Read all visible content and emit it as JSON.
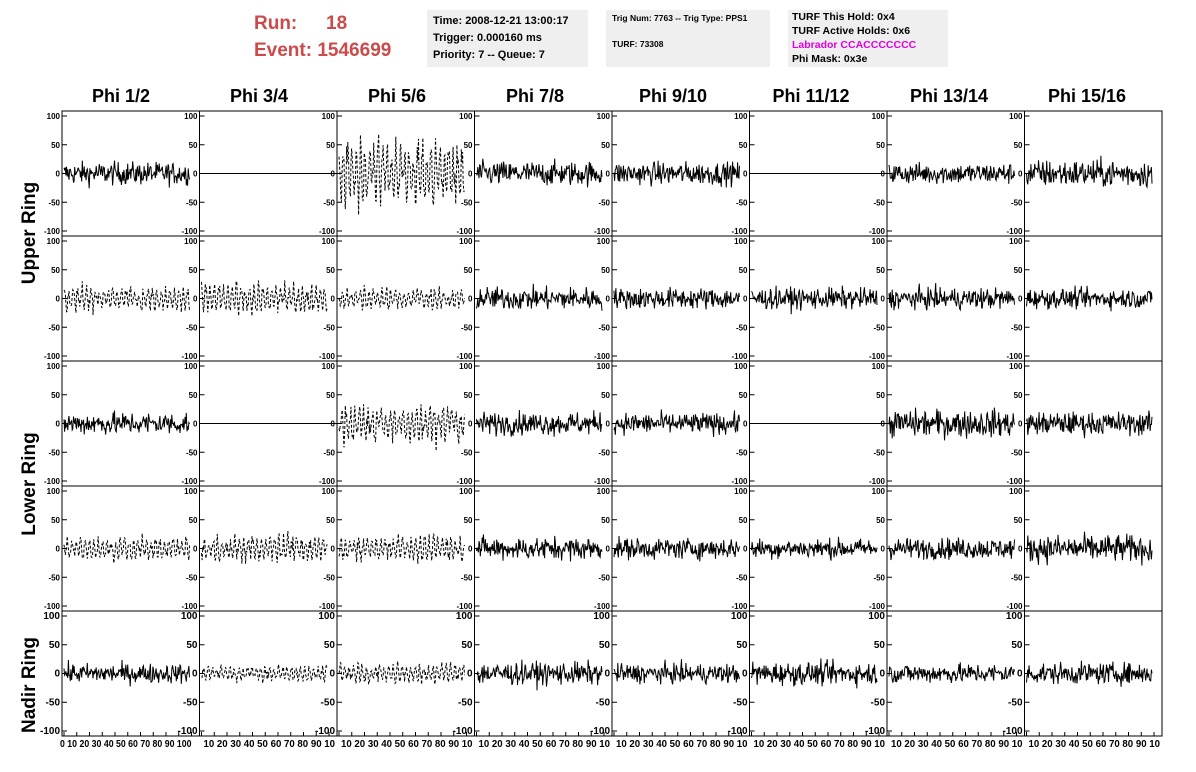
{
  "header": {
    "run_label": "Run:",
    "run_value": "18",
    "event_label": "Event:",
    "event_value": "1546699"
  },
  "info": {
    "time": "Time: 2008-12-21 13:00:17",
    "trigger": "Trigger: 0.000160 ms",
    "priority": "Priority: 7 -- Queue: 7",
    "trig_num": "Trig Num: 7763 -- Trig Type: PPS1",
    "turf": "TURF: 73308",
    "turf_this_hold": "TURF This Hold: 0x4",
    "turf_active_holds": "TURF Active Holds: 0x6",
    "labrador": "Labrador CCACCCCCCC",
    "phi_mask": "Phi Mask: 0x3e",
    "labrador_color": "#e000e0",
    "title_color": "#cc4a4a",
    "box_color": "#efefef"
  },
  "columns": [
    "Phi 1/2",
    "Phi 3/4",
    "Phi 5/6",
    "Phi 7/8",
    "Phi 9/10",
    "Phi 11/12",
    "Phi 13/14",
    "Phi 15/16"
  ],
  "ring_labels": [
    "Upper Ring",
    "Lower Ring",
    "Nadir Ring"
  ],
  "chart_data": {
    "type": "line",
    "description_rows": [
      "upper-a",
      "upper-b",
      "lower-a",
      "lower-b",
      "nadir"
    ],
    "xlim": [
      0,
      100
    ],
    "ylim": [
      -100,
      100
    ],
    "y_ticks": [
      100,
      50,
      0,
      -50,
      -100
    ],
    "x_ticks": [
      0,
      10,
      20,
      30,
      40,
      50,
      60,
      70,
      80,
      90,
      100
    ],
    "x_tick_text": "0 10 20 30 40 50 60 70 80 90 100",
    "x_tick_text_compact": "10 20 30 40 50 60 70 80 90 10",
    "panels": [
      [
        {
          "amp": 14,
          "style": "solid"
        },
        {
          "amp": 0,
          "style": "flat"
        },
        {
          "amp": 45,
          "style": "dashed"
        },
        {
          "amp": 15,
          "style": "solid"
        },
        {
          "amp": 14,
          "style": "solid"
        },
        {
          "amp": 0,
          "style": "flat"
        },
        {
          "amp": 13,
          "style": "solid"
        },
        {
          "amp": 17,
          "style": "solid"
        }
      ],
      [
        {
          "amp": 17,
          "style": "dashed"
        },
        {
          "amp": 22,
          "style": "dashed"
        },
        {
          "amp": 16,
          "style": "dashed"
        },
        {
          "amp": 14,
          "style": "solid"
        },
        {
          "amp": 13,
          "style": "solid"
        },
        {
          "amp": 13,
          "style": "solid"
        },
        {
          "amp": 13,
          "style": "solid"
        },
        {
          "amp": 12,
          "style": "solid"
        }
      ],
      [
        {
          "amp": 14,
          "style": "solid"
        },
        {
          "amp": 0,
          "style": "flat"
        },
        {
          "amp": 28,
          "style": "dashed"
        },
        {
          "amp": 14,
          "style": "solid"
        },
        {
          "amp": 13,
          "style": "solid"
        },
        {
          "amp": 0,
          "style": "flat"
        },
        {
          "amp": 17,
          "style": "solid"
        },
        {
          "amp": 14,
          "style": "solid"
        }
      ],
      [
        {
          "amp": 16,
          "style": "dashed"
        },
        {
          "amp": 20,
          "style": "dashed"
        },
        {
          "amp": 18,
          "style": "dashed"
        },
        {
          "amp": 14,
          "style": "solid"
        },
        {
          "amp": 13,
          "style": "solid"
        },
        {
          "amp": 12,
          "style": "solid"
        },
        {
          "amp": 13,
          "style": "solid"
        },
        {
          "amp": 17,
          "style": "solid"
        }
      ],
      [
        {
          "amp": 12,
          "style": "solid"
        },
        {
          "amp": 12,
          "style": "dashed"
        },
        {
          "amp": 16,
          "style": "dashed"
        },
        {
          "amp": 14,
          "style": "solid"
        },
        {
          "amp": 12,
          "style": "solid"
        },
        {
          "amp": 14,
          "style": "solid"
        },
        {
          "amp": 12,
          "style": "solid"
        },
        {
          "amp": 13,
          "style": "solid"
        }
      ]
    ]
  }
}
